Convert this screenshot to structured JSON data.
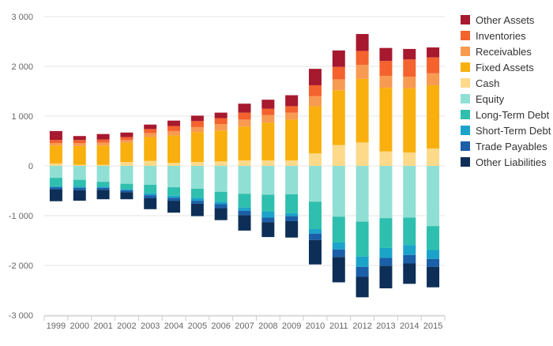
{
  "chart_data": {
    "type": "bar",
    "stacked": true,
    "categories": [
      "1999",
      "2000",
      "2001",
      "2002",
      "2003",
      "2004",
      "2005",
      "2006",
      "2007",
      "2008",
      "2009",
      "2010",
      "2011",
      "2012",
      "2013",
      "2014",
      "2015"
    ],
    "ylim": [
      -3000,
      3000
    ],
    "yticks": [
      -3000,
      -2000,
      -1000,
      0,
      1000,
      2000,
      3000
    ],
    "ytick_labels": [
      "-3 000",
      "-2 000",
      "-1 000",
      "0",
      "1 000",
      "2 000",
      "3 000"
    ],
    "grid": true,
    "legend_position": "right",
    "series": [
      {
        "name": "Other Assets",
        "color": "#a6192e",
        "values": [
          180,
          80,
          110,
          90,
          90,
          110,
          110,
          110,
          180,
          180,
          220,
          330,
          330,
          340,
          260,
          210,
          200
        ]
      },
      {
        "name": "Inventories",
        "color": "#f4622d",
        "values": [
          60,
          60,
          60,
          60,
          80,
          100,
          120,
          120,
          140,
          130,
          130,
          220,
          250,
          280,
          300,
          350,
          320
        ]
      },
      {
        "name": "Receivables",
        "color": "#f79a52",
        "values": [
          50,
          60,
          60,
          50,
          80,
          90,
          100,
          130,
          140,
          150,
          140,
          200,
          220,
          280,
          240,
          230,
          240
        ]
      },
      {
        "name": "Fixed Assets",
        "color": "#f9b00e",
        "values": [
          360,
          380,
          390,
          390,
          480,
          550,
          600,
          620,
          680,
          760,
          820,
          950,
          1100,
          1280,
          1280,
          1290,
          1270
        ]
      },
      {
        "name": "Cash",
        "color": "#fdd98a",
        "values": [
          50,
          20,
          20,
          80,
          100,
          60,
          80,
          90,
          110,
          110,
          110,
          250,
          420,
          470,
          290,
          270,
          350
        ]
      },
      {
        "name": "Equity",
        "color": "#90dfd4",
        "values": [
          -240,
          -280,
          -320,
          -360,
          -380,
          -430,
          -460,
          -520,
          -560,
          -580,
          -570,
          -720,
          -1020,
          -1120,
          -1050,
          -1040,
          -1210
        ]
      },
      {
        "name": "Long-Term Debt",
        "color": "#2fbfae",
        "values": [
          -170,
          -140,
          -100,
          -110,
          -170,
          -170,
          -190,
          -200,
          -280,
          -340,
          -380,
          -550,
          -520,
          -700,
          -600,
          -550,
          -480
        ]
      },
      {
        "name": "Short-Term Debt",
        "color": "#1ba3c9",
        "values": [
          -20,
          -20,
          -20,
          -20,
          -40,
          -40,
          -50,
          -50,
          -60,
          -120,
          -60,
          -90,
          -140,
          -210,
          -200,
          -200,
          -180
        ]
      },
      {
        "name": "Trade Payables",
        "color": "#1a5fa8",
        "values": [
          -40,
          -50,
          -40,
          -40,
          -60,
          -60,
          -60,
          -80,
          -90,
          -90,
          -100,
          -130,
          -150,
          -200,
          -160,
          -170,
          -160
        ]
      },
      {
        "name": "Other Liabilities",
        "color": "#0d2f57",
        "values": [
          -240,
          -210,
          -190,
          -140,
          -220,
          -240,
          -250,
          -240,
          -310,
          -300,
          -330,
          -490,
          -510,
          -410,
          -450,
          -410,
          -410
        ]
      }
    ]
  }
}
